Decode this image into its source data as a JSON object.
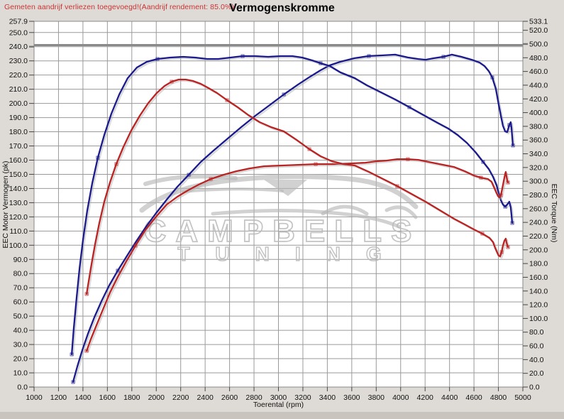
{
  "header": {
    "note": "Gemeten aandrijf verliezen toegevoegd!(Aandrijf rendement: 85.0%)",
    "note_color": "#cc3333",
    "title": "Vermogenskromme"
  },
  "watermark": {
    "line1": "CAMPBELLS",
    "line2": "TUNING",
    "color": "#b9b9b9"
  },
  "chart_data": {
    "type": "line",
    "title": "Vermogenskromme",
    "xlabel": "Toerental (rpm)",
    "ylabel_left": "EEC Motor Vermogen (pk)",
    "ylabel_right": "EEC Torque (Nm)",
    "x_range": [
      1000,
      5000
    ],
    "y_left_range": [
      0,
      257.9
    ],
    "y_right_range": [
      0,
      533.1
    ],
    "grid": true,
    "bold_line": {
      "axis": "right",
      "value": 500
    },
    "x_ticks": [
      1000,
      1200,
      1400,
      1600,
      1800,
      2000,
      2200,
      2400,
      2600,
      2800,
      3000,
      3200,
      3400,
      3600,
      3800,
      4000,
      4200,
      4400,
      4600,
      4800,
      5000
    ],
    "y_left_ticks": [
      257.9,
      250,
      240,
      230,
      220,
      210,
      200,
      190,
      180,
      170,
      160,
      150,
      140,
      130,
      120,
      110,
      100,
      90,
      80,
      70,
      60,
      50,
      40,
      30,
      20,
      10,
      0
    ],
    "y_right_ticks": [
      533.1,
      520,
      500,
      480,
      460,
      440,
      420,
      400,
      380,
      360,
      340,
      320,
      300,
      280,
      260,
      240,
      220,
      200,
      180,
      160,
      140,
      120,
      100,
      80,
      60,
      40,
      20,
      0
    ],
    "colors": {
      "tuned": "#1a1a8c",
      "original": "#bb2222"
    },
    "series": [
      {
        "name": "power-tuned",
        "unit": "pk",
        "axis": "left",
        "color": "#1a1a8c",
        "points": [
          [
            1319,
            3.5
          ],
          [
            1354,
            14.5
          ],
          [
            1395,
            26.0
          ],
          [
            1441,
            37.6
          ],
          [
            1493,
            49.1
          ],
          [
            1552,
            60.6
          ],
          [
            1615,
            71.6
          ],
          [
            1685,
            82.1
          ],
          [
            1761,
            92.6
          ],
          [
            1836,
            102.7
          ],
          [
            1917,
            113.2
          ],
          [
            1999,
            122.7
          ],
          [
            2086,
            132.2
          ],
          [
            2173,
            141.2
          ],
          [
            2266,
            149.7
          ],
          [
            2364,
            158.7
          ],
          [
            2463,
            166.3
          ],
          [
            2579,
            174.8
          ],
          [
            2695,
            183.3
          ],
          [
            2811,
            191.3
          ],
          [
            2928,
            198.8
          ],
          [
            3044,
            206.3
          ],
          [
            3160,
            213.3
          ],
          [
            3258,
            218.8
          ],
          [
            3345,
            223.4
          ],
          [
            3421,
            226.9
          ],
          [
            3508,
            229.4
          ],
          [
            3624,
            231.9
          ],
          [
            3740,
            233.4
          ],
          [
            3856,
            233.9
          ],
          [
            3955,
            234.4
          ],
          [
            4059,
            232.4
          ],
          [
            4146,
            231.3
          ],
          [
            4204,
            230.8
          ],
          [
            4274,
            231.9
          ],
          [
            4350,
            232.9
          ],
          [
            4419,
            234.4
          ],
          [
            4495,
            232.9
          ],
          [
            4582,
            230.8
          ],
          [
            4646,
            228.8
          ],
          [
            4687,
            226.3
          ],
          [
            4721,
            222.8
          ],
          [
            4750,
            218.3
          ],
          [
            4779,
            210.3
          ],
          [
            4802,
            199.3
          ],
          [
            4820,
            191.3
          ],
          [
            4837,
            184.3
          ],
          [
            4855,
            180.3
          ],
          [
            4872,
            179.8
          ],
          [
            4889,
            184.8
          ],
          [
            4901,
            186.8
          ],
          [
            4907,
            182.8
          ],
          [
            4913,
            176.3
          ],
          [
            4919,
            170.3
          ]
        ]
      },
      {
        "name": "torque-tuned",
        "unit": "Nm",
        "axis": "right",
        "color": "#1a1a8c",
        "points": [
          [
            1308,
            47.6
          ],
          [
            1325,
            85.9
          ],
          [
            1348,
            129.4
          ],
          [
            1372,
            172.9
          ],
          [
            1401,
            215.3
          ],
          [
            1435,
            256.7
          ],
          [
            1476,
            297.1
          ],
          [
            1522,
            334.3
          ],
          [
            1575,
            367.5
          ],
          [
            1633,
            398.5
          ],
          [
            1697,
            426.5
          ],
          [
            1766,
            450.2
          ],
          [
            1842,
            465.8
          ],
          [
            1923,
            474.1
          ],
          [
            2010,
            478.2
          ],
          [
            2115,
            480.3
          ],
          [
            2219,
            481.3
          ],
          [
            2318,
            480.3
          ],
          [
            2417,
            478.2
          ],
          [
            2509,
            478.2
          ],
          [
            2608,
            480.3
          ],
          [
            2707,
            482.4
          ],
          [
            2811,
            482.4
          ],
          [
            2916,
            481.3
          ],
          [
            3020,
            482.4
          ],
          [
            3113,
            482.4
          ],
          [
            3194,
            480.3
          ],
          [
            3276,
            476.2
          ],
          [
            3345,
            472.0
          ],
          [
            3421,
            467.9
          ],
          [
            3508,
            458.6
          ],
          [
            3624,
            450.3
          ],
          [
            3723,
            439.9
          ],
          [
            3839,
            429.6
          ],
          [
            3955,
            419.2
          ],
          [
            4071,
            407.9
          ],
          [
            4187,
            396.5
          ],
          [
            4303,
            385.1
          ],
          [
            4390,
            376.8
          ],
          [
            4466,
            367.5
          ],
          [
            4541,
            356.1
          ],
          [
            4611,
            342.6
          ],
          [
            4675,
            328.1
          ],
          [
            4721,
            317.8
          ],
          [
            4756,
            306.4
          ],
          [
            4785,
            294.0
          ],
          [
            4802,
            282.6
          ],
          [
            4820,
            272.2
          ],
          [
            4837,
            266.0
          ],
          [
            4855,
            262.9
          ],
          [
            4872,
            266.0
          ],
          [
            4889,
            270.2
          ],
          [
            4901,
            261.9
          ],
          [
            4907,
            250.5
          ],
          [
            4913,
            239.1
          ]
        ]
      },
      {
        "name": "power-original",
        "unit": "pk",
        "axis": "left",
        "color": "#bb2222",
        "points": [
          [
            1430,
            25.5
          ],
          [
            1464,
            33.6
          ],
          [
            1511,
            43.6
          ],
          [
            1563,
            54.6
          ],
          [
            1621,
            66.6
          ],
          [
            1685,
            77.6
          ],
          [
            1755,
            88.6
          ],
          [
            1830,
            99.7
          ],
          [
            1911,
            110.7
          ],
          [
            1999,
            120.2
          ],
          [
            2086,
            128.7
          ],
          [
            2173,
            134.2
          ],
          [
            2260,
            138.7
          ],
          [
            2347,
            142.7
          ],
          [
            2446,
            146.7
          ],
          [
            2550,
            149.7
          ],
          [
            2655,
            152.2
          ],
          [
            2765,
            154.2
          ],
          [
            2881,
            155.7
          ],
          [
            3015,
            156.2
          ],
          [
            3160,
            156.7
          ],
          [
            3305,
            157.2
          ],
          [
            3450,
            157.2
          ],
          [
            3595,
            157.7
          ],
          [
            3711,
            158.2
          ],
          [
            3798,
            159.2
          ],
          [
            3885,
            159.7
          ],
          [
            3972,
            160.7
          ],
          [
            4059,
            160.7
          ],
          [
            4146,
            160.2
          ],
          [
            4233,
            158.7
          ],
          [
            4320,
            157.2
          ],
          [
            4436,
            155.2
          ],
          [
            4524,
            152.2
          ],
          [
            4599,
            149.2
          ],
          [
            4657,
            147.7
          ],
          [
            4715,
            146.7
          ],
          [
            4744,
            144.7
          ],
          [
            4767,
            140.2
          ],
          [
            4785,
            136.7
          ],
          [
            4796,
            134.7
          ],
          [
            4808,
            133.7
          ],
          [
            4820,
            135.2
          ],
          [
            4831,
            139.7
          ],
          [
            4843,
            145.2
          ],
          [
            4855,
            150.2
          ],
          [
            4860,
            151.7
          ],
          [
            4866,
            148.7
          ],
          [
            4872,
            145.7
          ],
          [
            4878,
            144.2
          ]
        ]
      },
      {
        "name": "torque-original",
        "unit": "Nm",
        "axis": "right",
        "color": "#bb2222",
        "points": [
          [
            1430,
            135.6
          ],
          [
            1447,
            154.2
          ],
          [
            1470,
            179.1
          ],
          [
            1499,
            208.1
          ],
          [
            1534,
            239.1
          ],
          [
            1575,
            270.2
          ],
          [
            1621,
            298.1
          ],
          [
            1673,
            325.0
          ],
          [
            1731,
            349.9
          ],
          [
            1795,
            373.7
          ],
          [
            1865,
            395.4
          ],
          [
            1935,
            414.1
          ],
          [
            2004,
            428.6
          ],
          [
            2068,
            438.9
          ],
          [
            2126,
            445.1
          ],
          [
            2184,
            448.2
          ],
          [
            2242,
            448.2
          ],
          [
            2300,
            446.1
          ],
          [
            2364,
            442.0
          ],
          [
            2428,
            435.8
          ],
          [
            2498,
            428.6
          ],
          [
            2579,
            418.2
          ],
          [
            2666,
            407.9
          ],
          [
            2753,
            396.5
          ],
          [
            2846,
            386.1
          ],
          [
            2939,
            378.9
          ],
          [
            3044,
            372.7
          ],
          [
            3148,
            360.3
          ],
          [
            3253,
            346.8
          ],
          [
            3345,
            336.4
          ],
          [
            3438,
            329.2
          ],
          [
            3531,
            325.0
          ],
          [
            3624,
            323.0
          ],
          [
            3740,
            313.6
          ],
          [
            3856,
            303.3
          ],
          [
            3972,
            292.9
          ],
          [
            4088,
            281.6
          ],
          [
            4204,
            270.2
          ],
          [
            4320,
            257.7
          ],
          [
            4436,
            245.3
          ],
          [
            4524,
            237.0
          ],
          [
            4599,
            229.8
          ],
          [
            4669,
            223.6
          ],
          [
            4727,
            217.4
          ],
          [
            4756,
            211.2
          ],
          [
            4773,
            202.9
          ],
          [
            4791,
            195.6
          ],
          [
            4802,
            191.5
          ],
          [
            4814,
            190.5
          ],
          [
            4826,
            196.7
          ],
          [
            4837,
            206.0
          ],
          [
            4849,
            213.2
          ],
          [
            4860,
            216.3
          ],
          [
            4866,
            211.2
          ],
          [
            4872,
            207.0
          ],
          [
            4878,
            203.9
          ]
        ]
      }
    ]
  }
}
